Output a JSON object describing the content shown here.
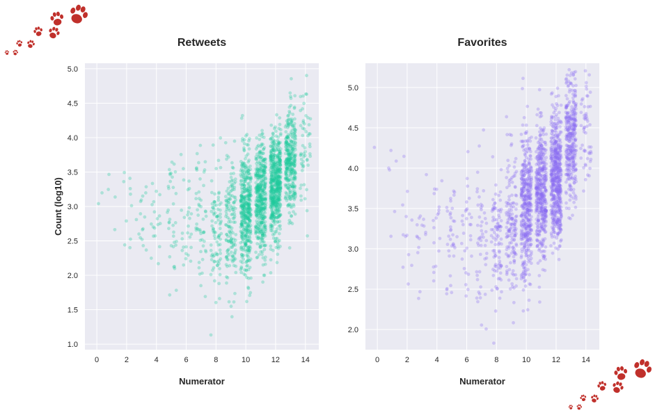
{
  "colors": {
    "background": "#ffffff",
    "plot_background": "#eaeaf2",
    "grid": "#ffffff",
    "text": "#262626",
    "paw": "#c0302b"
  },
  "decorations": {
    "top_left": "paw-prints",
    "bottom_right": "paw-prints"
  },
  "chart_data": [
    {
      "type": "scatter",
      "title": "Retweets",
      "xlabel": "Numerator",
      "ylabel": "Count (log10)",
      "xlim": [
        -0.8,
        14.9
      ],
      "ylim": [
        0.92,
        5.08
      ],
      "xticks": [
        0,
        2,
        4,
        6,
        8,
        10,
        12,
        14
      ],
      "yticks": [
        1.0,
        1.5,
        2.0,
        2.5,
        3.0,
        3.5,
        4.0,
        4.5,
        5.0
      ],
      "grid": true,
      "color": "#1dc99b",
      "opacity": 0.3,
      "jitter": 0.35,
      "groups": [
        {
          "x": 0,
          "n": 2,
          "mean": 3.3,
          "sd": 0.25
        },
        {
          "x": 1,
          "n": 4,
          "mean": 3.3,
          "sd": 0.4
        },
        {
          "x": 2,
          "n": 10,
          "mean": 3.0,
          "sd": 0.4
        },
        {
          "x": 3,
          "n": 15,
          "mean": 2.9,
          "sd": 0.3
        },
        {
          "x": 4,
          "n": 18,
          "mean": 2.9,
          "sd": 0.4
        },
        {
          "x": 5,
          "n": 35,
          "mean": 2.8,
          "sd": 0.45
        },
        {
          "x": 6,
          "n": 28,
          "mean": 2.8,
          "sd": 0.45
        },
        {
          "x": 7,
          "n": 50,
          "mean": 2.8,
          "sd": 0.5
        },
        {
          "x": 8,
          "n": 90,
          "mean": 2.7,
          "sd": 0.45
        },
        {
          "x": 9,
          "n": 150,
          "mean": 2.7,
          "sd": 0.45
        },
        {
          "x": 10,
          "n": 430,
          "mean": 2.9,
          "sd": 0.45
        },
        {
          "x": 11,
          "n": 440,
          "mean": 3.1,
          "sd": 0.42
        },
        {
          "x": 12,
          "n": 550,
          "mean": 3.3,
          "sd": 0.38
        },
        {
          "x": 13,
          "n": 340,
          "mean": 3.6,
          "sd": 0.4
        },
        {
          "x": 14,
          "n": 55,
          "mean": 3.9,
          "sd": 0.4
        }
      ]
    },
    {
      "type": "scatter",
      "title": "Favorites",
      "xlabel": "Numerator",
      "ylabel": "",
      "xlim": [
        -0.8,
        14.9
      ],
      "ylim": [
        1.75,
        5.3
      ],
      "xticks": [
        0,
        2,
        4,
        6,
        8,
        10,
        12,
        14
      ],
      "yticks": [
        2.0,
        2.5,
        3.0,
        3.5,
        4.0,
        4.5,
        5.0
      ],
      "grid": true,
      "color": "#8a6cf2",
      "opacity": 0.3,
      "jitter": 0.35,
      "groups": [
        {
          "x": 0,
          "n": 1,
          "mean": 4.3,
          "sd": 0.1
        },
        {
          "x": 1,
          "n": 6,
          "mean": 3.6,
          "sd": 0.35
        },
        {
          "x": 2,
          "n": 12,
          "mean": 3.3,
          "sd": 0.4
        },
        {
          "x": 3,
          "n": 16,
          "mean": 3.3,
          "sd": 0.35
        },
        {
          "x": 4,
          "n": 18,
          "mean": 3.3,
          "sd": 0.4
        },
        {
          "x": 5,
          "n": 35,
          "mean": 3.2,
          "sd": 0.4
        },
        {
          "x": 6,
          "n": 30,
          "mean": 3.2,
          "sd": 0.4
        },
        {
          "x": 7,
          "n": 50,
          "mean": 3.2,
          "sd": 0.45
        },
        {
          "x": 8,
          "n": 95,
          "mean": 3.2,
          "sd": 0.45
        },
        {
          "x": 9,
          "n": 150,
          "mean": 3.3,
          "sd": 0.45
        },
        {
          "x": 10,
          "n": 430,
          "mean": 3.5,
          "sd": 0.45
        },
        {
          "x": 11,
          "n": 440,
          "mean": 3.7,
          "sd": 0.4
        },
        {
          "x": 12,
          "n": 550,
          "mean": 3.9,
          "sd": 0.38
        },
        {
          "x": 13,
          "n": 340,
          "mean": 4.3,
          "sd": 0.38
        },
        {
          "x": 14,
          "n": 55,
          "mean": 4.5,
          "sd": 0.35
        }
      ]
    }
  ]
}
